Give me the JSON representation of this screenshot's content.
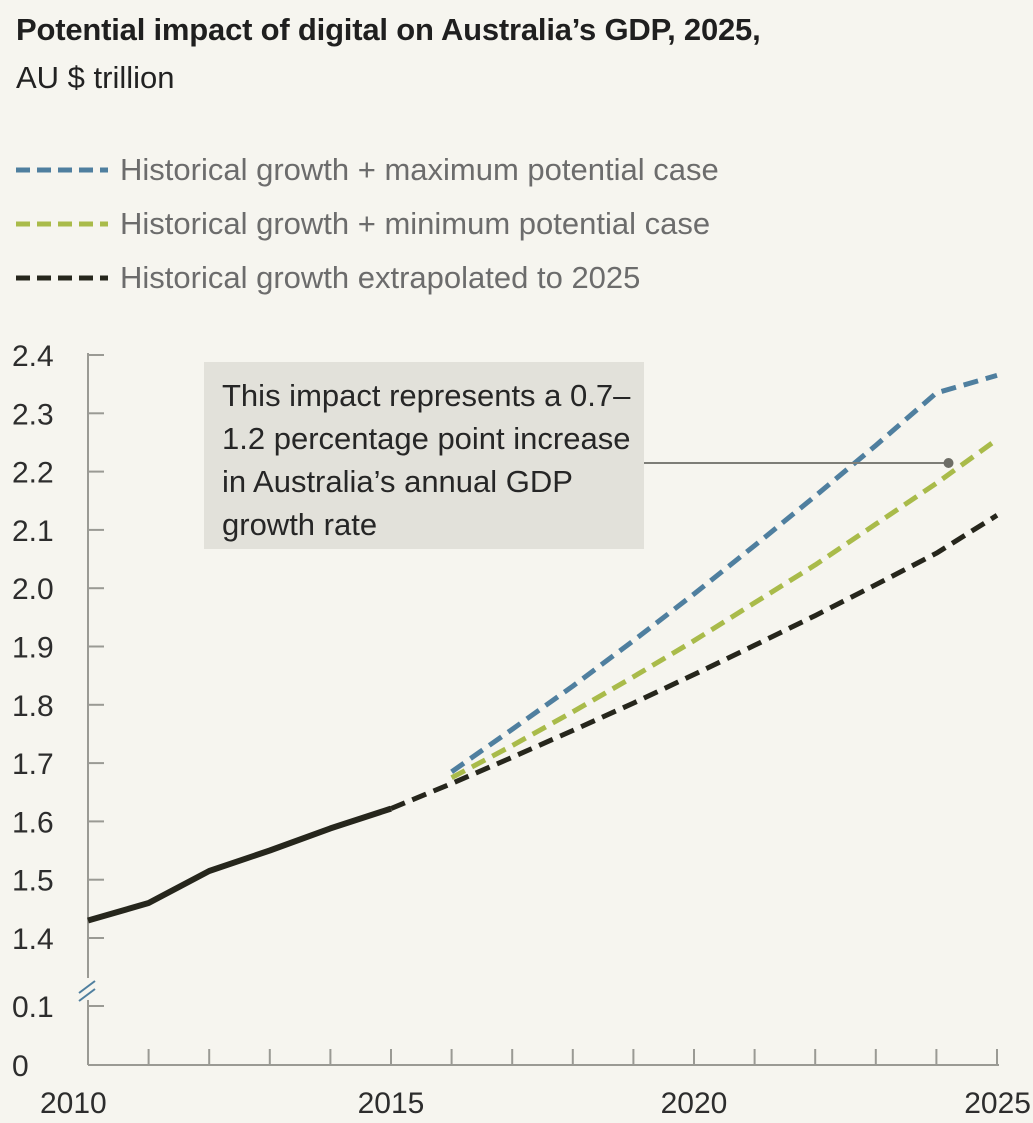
{
  "header": {
    "title": "Potential impact of digital on Australia’s GDP, 2025,",
    "subtitle": "AU $ trillion"
  },
  "legend": [
    {
      "label": "Historical growth + maximum potential case",
      "color": "#4f7f9f"
    },
    {
      "label": "Historical growth + minimum potential case",
      "color": "#a9bb4a"
    },
    {
      "label": "Historical growth extrapolated to 2025",
      "color": "#26261c"
    }
  ],
  "callout": {
    "text": "This impact represents a 0.7–1.2 percentage point increase in Australia’s annual GDP growth rate"
  },
  "chart_data": {
    "type": "line",
    "title": "Potential impact of digital on Australia’s GDP, 2025,",
    "subtitle": "AU $ trillion",
    "xlabel": "",
    "ylabel": "",
    "x_range": [
      2010,
      2025
    ],
    "x_tick_labels": [
      "2010",
      "2015",
      "2020",
      "2025"
    ],
    "y_tick_labels": [
      "0",
      "0.1",
      "1.4",
      "1.5",
      "1.6",
      "1.7",
      "1.8",
      "1.9",
      "2.0",
      "2.1",
      "2.2",
      "2.3",
      "2.4"
    ],
    "y_axis_break": "between 0.1 and 1.4",
    "grid": false,
    "legend_position": "top",
    "series": [
      {
        "name": "Historical",
        "style": "solid",
        "color": "#26261c",
        "x": [
          2010,
          2011,
          2012,
          2013,
          2014,
          2015
        ],
        "y": [
          1.43,
          1.46,
          1.515,
          1.55,
          1.588,
          1.622
        ]
      },
      {
        "name": "Historical growth extrapolated to 2025",
        "style": "dashed",
        "color": "#26261c",
        "x": [
          2015,
          2016,
          2017,
          2018,
          2019,
          2020,
          2021,
          2022,
          2023,
          2024,
          2025
        ],
        "y": [
          1.622,
          1.665,
          1.71,
          1.756,
          1.803,
          1.852,
          1.902,
          1.953,
          2.006,
          2.06,
          2.125
        ]
      },
      {
        "name": "Historical growth + minimum potential case",
        "style": "dashed",
        "color": "#a9bb4a",
        "x": [
          2016,
          2017,
          2018,
          2019,
          2020,
          2021,
          2022,
          2023,
          2024,
          2025
        ],
        "y": [
          1.675,
          1.73,
          1.788,
          1.848,
          1.91,
          1.975,
          2.04,
          2.11,
          2.18,
          2.255
        ]
      },
      {
        "name": "Historical growth + maximum potential case",
        "style": "dashed",
        "color": "#4f7f9f",
        "x": [
          2016,
          2017,
          2018,
          2019,
          2020,
          2021,
          2022,
          2023,
          2024,
          2025
        ],
        "y": [
          1.685,
          1.758,
          1.832,
          1.91,
          1.99,
          2.073,
          2.158,
          2.245,
          2.335,
          2.365
        ]
      }
    ],
    "annotation": {
      "text": "This impact represents a 0.7–1.2 percentage point increase in Australia’s annual GDP growth rate",
      "points_to": {
        "x": 2024.2,
        "y": 2.21
      }
    }
  }
}
